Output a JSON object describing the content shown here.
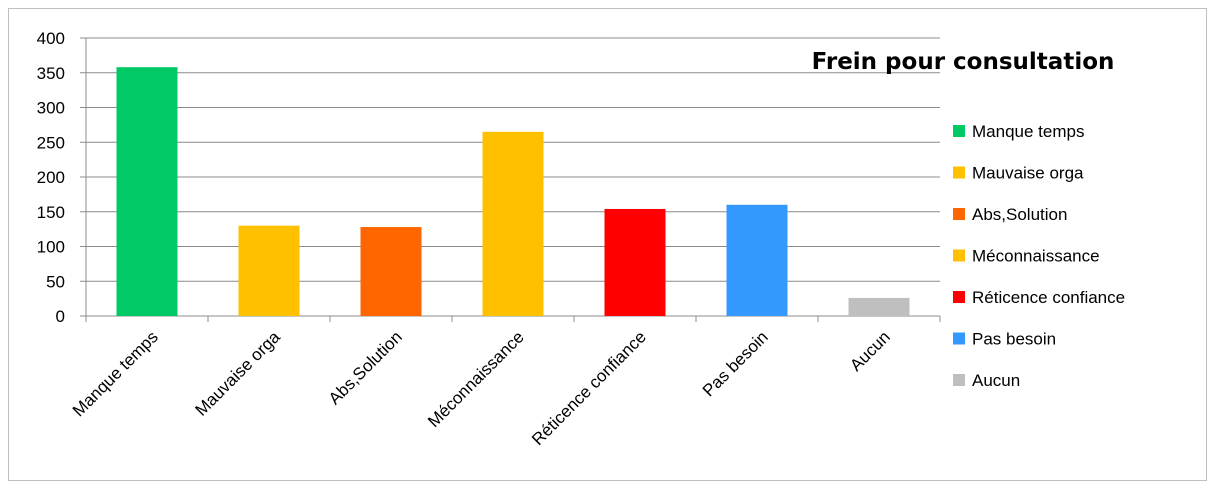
{
  "chart_data": {
    "type": "bar",
    "title": "Frein pour consultation",
    "xlabel": "",
    "ylabel": "",
    "ylim": [
      0,
      400
    ],
    "yticks": [
      0,
      50,
      100,
      150,
      200,
      250,
      300,
      350,
      400
    ],
    "grid": true,
    "legend_position": "right",
    "categories": [
      "Manque temps",
      "Mauvaise orga",
      "Abs,Solution",
      "Méconnaissance",
      "Réticence confiance",
      "Pas besoin",
      "Aucun"
    ],
    "values": [
      358,
      130,
      128,
      265,
      154,
      160,
      26
    ],
    "colors": [
      "#00c965",
      "#ffc000",
      "#ff6600",
      "#ffc000",
      "#ff0000",
      "#3399ff",
      "#bfbfbf"
    ],
    "legend": [
      "Manque temps",
      "Mauvaise orga",
      "Abs,Solution",
      "Méconnaissance",
      "Réticence confiance",
      "Pas besoin",
      "Aucun"
    ]
  }
}
